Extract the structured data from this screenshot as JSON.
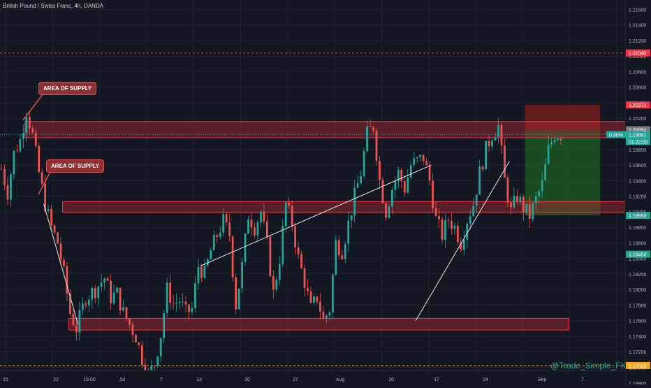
{
  "header": {
    "title": "British Pound / Swiss Franc, 4h, OANDA"
  },
  "watermark": "@Trade_Simple_FX",
  "annotations": {
    "supply_upper": "AREA OF SUPPLY",
    "supply_lower": "AREA OF SUPPLY"
  },
  "colors": {
    "background": "#131722",
    "up": "#26a69a",
    "down": "#ef5350",
    "zone_fill": "#b22833",
    "zone_stroke": "#f23645",
    "profit_fill": "#1b5e20",
    "loss_fill": "#7f1d1d",
    "price_line": "#26a69a"
  },
  "chart_data": {
    "type": "candlestick",
    "title": "British Pound / Swiss Franc, 4h, OANDA",
    "ylim": [
      1.1678,
      1.2172
    ],
    "y_ticks": [
      "1.21600",
      "1.21400",
      "1.21200",
      "1.21000",
      "1.20800",
      "1.20600",
      "1.20400",
      "1.20200",
      "1.20000",
      "1.19800",
      "1.19600",
      "1.19400",
      "1.19200",
      "1.19000",
      "1.18800",
      "1.18600",
      "1.18400",
      "1.18200",
      "1.18000",
      "1.17800",
      "1.17600",
      "1.17400",
      "1.17200",
      "1.17000",
      "1.16800"
    ],
    "x_ticks": [
      "15",
      "22",
      "15:00",
      "Jul",
      "7",
      "13",
      "20",
      "27",
      "Aug",
      "10",
      "17",
      "24",
      "Sep",
      "7"
    ],
    "path_points": [
      [
        0,
        1.1955
      ],
      [
        2,
        1.1925
      ],
      [
        4,
        1.1975
      ],
      [
        6,
        1.1992
      ],
      [
        8,
        1.203
      ],
      [
        10,
        1.1998
      ],
      [
        12,
        1.195
      ],
      [
        14,
        1.191
      ],
      [
        16,
        1.188
      ],
      [
        18,
        1.186
      ],
      [
        20,
        1.182
      ],
      [
        22,
        1.177
      ],
      [
        24,
        1.175
      ],
      [
        27,
        1.179
      ],
      [
        30,
        1.18
      ],
      [
        33,
        1.1815
      ],
      [
        35,
        1.179
      ],
      [
        37,
        1.1795
      ],
      [
        39,
        1.177
      ],
      [
        41,
        1.1755
      ],
      [
        43,
        1.174
      ],
      [
        45,
        1.1712
      ],
      [
        47,
        1.169
      ],
      [
        49,
        1.1705
      ],
      [
        51,
        1.1742
      ],
      [
        53,
        1.18
      ],
      [
        55,
        1.1782
      ],
      [
        57,
        1.1786
      ],
      [
        59,
        1.177
      ],
      [
        61,
        1.1775
      ],
      [
        63,
        1.183
      ],
      [
        65,
        1.182
      ],
      [
        67,
        1.185
      ],
      [
        69,
        1.187
      ],
      [
        71,
        1.1888
      ],
      [
        73,
        1.187
      ],
      [
        75,
        1.178
      ],
      [
        77,
        1.183
      ],
      [
        79,
        1.1896
      ],
      [
        81,
        1.188
      ],
      [
        83,
        1.19
      ],
      [
        85,
        1.1858
      ],
      [
        87,
        1.1795
      ],
      [
        89,
        1.184
      ],
      [
        91,
        1.191
      ],
      [
        93,
        1.1885
      ],
      [
        95,
        1.184
      ],
      [
        97,
        1.181
      ],
      [
        99,
        1.1775
      ],
      [
        101,
        1.179
      ],
      [
        103,
        1.176
      ],
      [
        105,
        1.1775
      ],
      [
        107,
        1.186
      ],
      [
        109,
        1.185
      ],
      [
        111,
        1.1885
      ],
      [
        113,
        1.192
      ],
      [
        115,
        1.195
      ],
      [
        117,
        1.2
      ],
      [
        119,
        1.201
      ],
      [
        121,
        1.194
      ],
      [
        123,
        1.19
      ],
      [
        125,
        1.193
      ],
      [
        127,
        1.195
      ],
      [
        129,
        1.193
      ],
      [
        131,
        1.196
      ],
      [
        133,
        1.1965
      ],
      [
        135,
        1.197
      ],
      [
        137,
        1.194
      ],
      [
        139,
        1.189
      ],
      [
        141,
        1.187
      ],
      [
        143,
        1.189
      ],
      [
        145,
        1.188
      ],
      [
        147,
        1.186
      ],
      [
        149,
        1.189
      ],
      [
        151,
        1.191
      ],
      [
        153,
        1.195
      ],
      [
        155,
        1.198
      ],
      [
        157,
        1.2
      ],
      [
        159,
        1.201
      ],
      [
        161,
        1.194
      ],
      [
        163,
        1.19
      ],
      [
        165,
        1.192
      ],
      [
        167,
        1.1905
      ],
      [
        169,
        1.1895
      ],
      [
        171,
        1.1915
      ],
      [
        173,
        1.1935
      ],
      [
        175,
        1.198
      ],
      [
        177,
        1.2
      ],
      [
        179,
        1.1999
      ]
    ],
    "last_index": 179,
    "zones": [
      {
        "name": "supply-upper",
        "from": 1.1995,
        "to": 1.2016,
        "x_from": 8,
        "x_to": 200
      },
      {
        "name": "supply-middle",
        "from": 1.1899,
        "to": 1.1913,
        "x_from": 20,
        "x_to": 200
      },
      {
        "name": "demand-lower",
        "from": 1.1748,
        "to": 1.1763,
        "x_from": 22,
        "x_to": 182
      }
    ],
    "trendlines": [
      {
        "name": "channel-upper",
        "x1": 64,
        "y1": 1.183,
        "x2": 138,
        "y2": 1.196
      },
      {
        "name": "channel-lower",
        "x1": 14,
        "y1": 1.191,
        "x2": 25,
        "y2": 1.1755
      },
      {
        "name": "rise-line",
        "x1": 133,
        "y1": 1.176,
        "x2": 163,
        "y2": 1.1965
      }
    ],
    "position": {
      "x_from": 168,
      "x_to": 192,
      "entry": 1.20054,
      "stop": 1.20372,
      "target": 1.18953
    },
    "hlines": [
      {
        "name": "dashed-red",
        "value": 1.2104,
        "color": "#f23645"
      },
      {
        "name": "dashed-orange",
        "value": 1.17023,
        "color": "#f5a623"
      }
    ],
    "price_labels": [
      {
        "name": "label-1-21040",
        "text": "1.21040",
        "value": 1.2104,
        "color": "#f23645"
      },
      {
        "name": "label-1-20372",
        "text": "1.20372",
        "value": 1.20372,
        "color": "#f23645"
      },
      {
        "name": "label-1-20054",
        "text": "1.20054",
        "value": 1.20054,
        "color": "#787b86"
      },
      {
        "name": "label-1-19991",
        "text": "1.19991",
        "value": 1.19991,
        "color": "#26a69a"
      },
      {
        "name": "label-1-18953",
        "text": "1.18953",
        "value": 1.18953,
        "color": "#26a69a"
      },
      {
        "name": "label-1-18454",
        "text": "1.18454",
        "value": 1.18454,
        "color": "#26a69a"
      },
      {
        "name": "label-1-17023",
        "text": "1.17023",
        "value": 1.17023,
        "color": "#f5a623"
      }
    ],
    "change_pct": "0.40%",
    "countdown": "01:22:03"
  }
}
